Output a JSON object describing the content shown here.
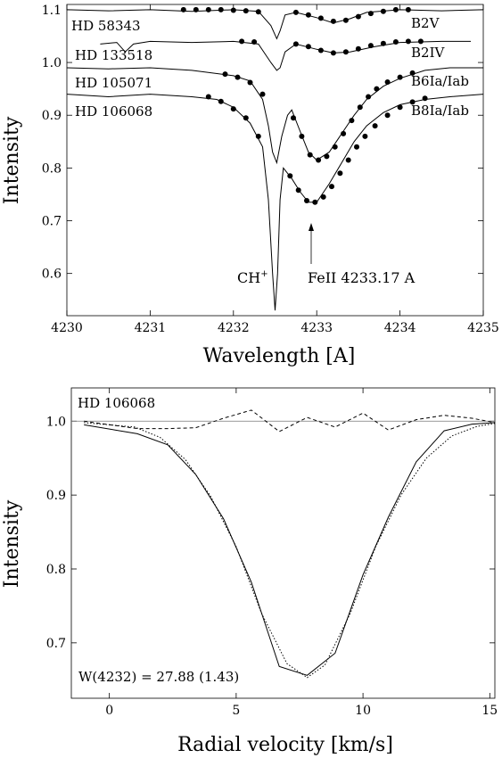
{
  "chart_data": [
    {
      "type": "line",
      "xlabel": "Wavelength [A]",
      "ylabel": "Intensity",
      "xlim": [
        4230,
        4235
      ],
      "ylim": [
        0.52,
        1.11
      ],
      "x_ticks": [
        "4230",
        "4231",
        "4232",
        "4233",
        "4234",
        "4235"
      ],
      "y_ticks": [
        "0.6",
        "0.7",
        "0.8",
        "0.9",
        "1.0",
        "1.1"
      ],
      "x_tick_values": [
        4230,
        4231,
        4232,
        4233,
        4234,
        4235
      ],
      "y_tick_values": [
        0.6,
        0.7,
        0.8,
        0.9,
        1.0,
        1.1
      ],
      "series": [
        {
          "name": "HD 58343",
          "spectral_type": "B2V",
          "x": [
            4230.0,
            4230.5,
            4231.0,
            4231.5,
            4232.0,
            4232.3,
            4232.45,
            4232.52,
            4232.56,
            4232.62,
            4232.75,
            4233.0,
            4233.2,
            4233.4,
            4233.6,
            4234.0,
            4234.5,
            4235.0
          ],
          "y": [
            1.1,
            1.098,
            1.1,
            1.097,
            1.1,
            1.097,
            1.07,
            1.045,
            1.06,
            1.09,
            1.095,
            1.085,
            1.075,
            1.083,
            1.095,
            1.1,
            1.098,
            1.1
          ],
          "markers_x": [
            4231.4,
            4231.55,
            4231.7,
            4231.85,
            4232.0,
            4232.15,
            4232.3,
            4232.75,
            4232.9,
            4233.05,
            4233.2,
            4233.35,
            4233.5,
            4233.65,
            4233.8,
            4233.95,
            4234.1
          ],
          "markers_y": [
            1.1,
            1.1,
            1.1,
            1.1,
            1.099,
            1.098,
            1.096,
            1.095,
            1.09,
            1.084,
            1.078,
            1.08,
            1.087,
            1.093,
            1.097,
            1.1,
            1.1
          ]
        },
        {
          "name": "HD 133518",
          "spectral_type": "B2IV",
          "x": [
            4230.4,
            4230.6,
            4230.7,
            4230.8,
            4231.0,
            4231.5,
            4232.0,
            4232.3,
            4232.45,
            4232.52,
            4232.56,
            4232.62,
            4232.75,
            4233.0,
            4233.2,
            4233.4,
            4233.7,
            4234.0,
            4234.5,
            4234.85
          ],
          "y": [
            1.035,
            1.038,
            1.02,
            1.035,
            1.04,
            1.038,
            1.04,
            1.035,
            1.0,
            0.985,
            0.99,
            1.02,
            1.035,
            1.025,
            1.018,
            1.02,
            1.03,
            1.038,
            1.04,
            1.04
          ],
          "markers_x": [
            4232.1,
            4232.25,
            4232.75,
            4232.9,
            4233.05,
            4233.2,
            4233.35,
            4233.5,
            4233.65,
            4233.8,
            4233.95,
            4234.1,
            4234.25
          ],
          "markers_y": [
            1.04,
            1.039,
            1.035,
            1.03,
            1.023,
            1.018,
            1.02,
            1.026,
            1.032,
            1.036,
            1.039,
            1.04,
            1.04
          ]
        },
        {
          "name": "HD 105071",
          "spectral_type": "B6Ia/Iab",
          "x": [
            4230.0,
            4230.5,
            4231.0,
            4231.5,
            4232.0,
            4232.2,
            4232.35,
            4232.42,
            4232.47,
            4232.52,
            4232.58,
            4232.65,
            4232.7,
            4232.8,
            4232.9,
            4233.0,
            4233.15,
            4233.3,
            4233.45,
            4233.6,
            4233.8,
            4234.0,
            4234.3,
            4234.6,
            4235.0
          ],
          "y": [
            0.99,
            0.988,
            0.99,
            0.985,
            0.975,
            0.965,
            0.93,
            0.88,
            0.83,
            0.81,
            0.86,
            0.9,
            0.91,
            0.87,
            0.83,
            0.815,
            0.83,
            0.865,
            0.9,
            0.93,
            0.955,
            0.97,
            0.985,
            0.99,
            0.99
          ],
          "markers_x": [
            4231.9,
            4232.05,
            4232.2,
            4232.35,
            4232.72,
            4232.82,
            4232.92,
            4233.02,
            4233.12,
            4233.22,
            4233.32,
            4233.42,
            4233.52,
            4233.62,
            4233.72,
            4233.85,
            4234.0,
            4234.15
          ],
          "markers_y": [
            0.978,
            0.972,
            0.962,
            0.94,
            0.895,
            0.86,
            0.825,
            0.815,
            0.822,
            0.84,
            0.865,
            0.89,
            0.915,
            0.935,
            0.95,
            0.963,
            0.972,
            0.98
          ]
        },
        {
          "name": "HD 106068",
          "spectral_type": "B8Ia/Iab",
          "x": [
            4230.0,
            4230.5,
            4231.0,
            4231.5,
            4231.8,
            4232.0,
            4232.2,
            4232.35,
            4232.42,
            4232.47,
            4232.5,
            4232.53,
            4232.56,
            4232.6,
            4232.65,
            4232.7,
            4232.8,
            4232.9,
            4233.0,
            4233.15,
            4233.3,
            4233.45,
            4233.6,
            4233.8,
            4234.0,
            4234.3,
            4234.6,
            4235.0
          ],
          "y": [
            0.94,
            0.935,
            0.94,
            0.935,
            0.93,
            0.915,
            0.885,
            0.84,
            0.74,
            0.6,
            0.53,
            0.6,
            0.74,
            0.8,
            0.79,
            0.78,
            0.755,
            0.735,
            0.735,
            0.77,
            0.81,
            0.85,
            0.88,
            0.905,
            0.92,
            0.93,
            0.935,
            0.94
          ],
          "markers_x": [
            4231.7,
            4231.85,
            4232.0,
            4232.15,
            4232.3,
            4232.68,
            4232.78,
            4232.88,
            4232.98,
            4233.08,
            4233.18,
            4233.28,
            4233.38,
            4233.48,
            4233.58,
            4233.7,
            4233.85,
            4234.0,
            4234.15,
            4234.3
          ],
          "markers_y": [
            0.935,
            0.926,
            0.912,
            0.895,
            0.86,
            0.785,
            0.758,
            0.738,
            0.735,
            0.745,
            0.765,
            0.79,
            0.815,
            0.84,
            0.86,
            0.88,
            0.9,
            0.915,
            0.925,
            0.932
          ]
        }
      ],
      "annotations": [
        {
          "text": "CH",
          "superscript": "+",
          "x": 4232.3,
          "y": 0.595
        },
        {
          "text": "FeII 4233.17 A",
          "x": 4233.0,
          "y": 0.595,
          "arrow_to": [
            4232.9,
            0.74
          ]
        }
      ]
    },
    {
      "type": "line",
      "title": "HD 106068",
      "xlabel": "Radial velocity [km/s]",
      "ylabel": "Intensity",
      "xlim": [
        -1.5,
        15.2
      ],
      "ylim": [
        0.625,
        1.045
      ],
      "x_ticks": [
        "0",
        "5",
        "10",
        "15"
      ],
      "y_ticks": [
        "0.7",
        "0.8",
        "0.9",
        "1.0"
      ],
      "x_tick_values": [
        0,
        5,
        10,
        15
      ],
      "y_tick_values": [
        0.7,
        0.8,
        0.9,
        1.0
      ],
      "reference_line": 1.0,
      "annotation": "W(4232) = 27.88 (1.43)",
      "series": [
        {
          "style": "solid",
          "x": [
            -1.0,
            1.1,
            2.3,
            3.4,
            4.5,
            5.6,
            6.7,
            7.8,
            8.9,
            10.0,
            11.0,
            12.1,
            13.2,
            14.3,
            15.2
          ],
          "y": [
            0.995,
            0.983,
            0.968,
            0.928,
            0.868,
            0.782,
            0.668,
            0.656,
            0.686,
            0.792,
            0.87,
            0.945,
            0.987,
            0.996,
            0.998
          ]
        },
        {
          "style": "dotted",
          "x": [
            -1.0,
            1.0,
            2.0,
            3.0,
            4.0,
            5.0,
            6.0,
            7.0,
            7.8,
            8.5,
            9.5,
            10.5,
            11.5,
            12.5,
            13.5,
            14.5,
            15.2
          ],
          "y": [
            0.998,
            0.992,
            0.978,
            0.948,
            0.898,
            0.83,
            0.74,
            0.672,
            0.653,
            0.67,
            0.74,
            0.83,
            0.9,
            0.95,
            0.98,
            0.993,
            0.997
          ]
        },
        {
          "style": "dashed",
          "x": [
            -1.0,
            1.1,
            2.3,
            3.4,
            4.5,
            5.6,
            6.7,
            7.8,
            8.9,
            10.0,
            11.0,
            12.1,
            13.2,
            14.3,
            15.2
          ],
          "y": [
            1.0,
            0.99,
            0.99,
            0.991,
            1.004,
            1.015,
            0.986,
            1.005,
            0.992,
            1.011,
            0.988,
            1.002,
            1.008,
            1.004,
            0.998
          ]
        }
      ]
    }
  ]
}
